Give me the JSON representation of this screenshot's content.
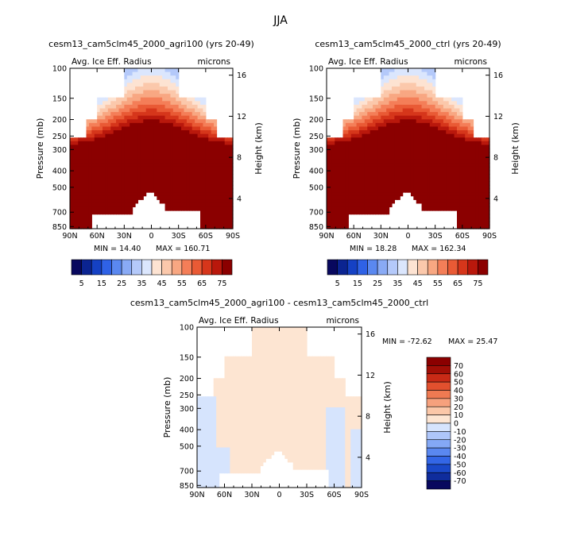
{
  "figure": {
    "title": "JJA"
  },
  "chart_data": [
    {
      "type": "heatmap",
      "title": "cesm13_cam5clm45_2000_agri100 (yrs 20-49)",
      "variable": "Avg. Ice Eff. Radius",
      "units": "microns",
      "ylabel": "Pressure (mb)",
      "y2label": "Height (km)",
      "x_ticks": [
        "90N",
        "60N",
        "30N",
        "0",
        "30S",
        "60S",
        "90S"
      ],
      "y_ticks": [
        "100",
        "150",
        "200",
        "250",
        "300",
        "400",
        "500",
        "700",
        "850"
      ],
      "y2_ticks": [
        "16",
        "12",
        "8",
        "4"
      ],
      "min_label": "MIN = 14.40",
      "max_label": "MAX = 160.71",
      "colorbar_labels": [
        "5",
        "15",
        "25",
        "35",
        "45",
        "55",
        "65",
        "75"
      ],
      "colorbar_min": 0,
      "colorbar_max": 80,
      "colorbar_step": 5
    },
    {
      "type": "heatmap",
      "title": "cesm13_cam5clm45_2000_ctrl (yrs 20-49)",
      "variable": "Avg. Ice Eff. Radius",
      "units": "microns",
      "ylabel": "Pressure (mb)",
      "y2label": "Height (km)",
      "x_ticks": [
        "90N",
        "60N",
        "30N",
        "0",
        "30S",
        "60S",
        "90S"
      ],
      "y_ticks": [
        "100",
        "150",
        "200",
        "250",
        "300",
        "400",
        "500",
        "700",
        "850"
      ],
      "y2_ticks": [
        "16",
        "12",
        "8",
        "4"
      ],
      "min_label": "MIN = 18.28",
      "max_label": "MAX = 162.34",
      "colorbar_labels": [
        "5",
        "15",
        "25",
        "35",
        "45",
        "55",
        "65",
        "75"
      ],
      "colorbar_min": 0,
      "colorbar_max": 80,
      "colorbar_step": 5
    },
    {
      "type": "heatmap",
      "title": "cesm13_cam5clm45_2000_agri100 - cesm13_cam5clm45_2000_ctrl",
      "variable": "Avg. Ice Eff. Radius",
      "units": "microns",
      "ylabel": "Pressure (mb)",
      "y2label": "Height (km)",
      "x_ticks": [
        "90N",
        "60N",
        "30N",
        "0",
        "30S",
        "60S",
        "90S"
      ],
      "y_ticks": [
        "100",
        "150",
        "200",
        "250",
        "300",
        "400",
        "500",
        "700",
        "850"
      ],
      "y2_ticks": [
        "16",
        "12",
        "8",
        "4"
      ],
      "min_label": "MIN = -72.62",
      "max_label": "MAX = 25.47",
      "colorbar_labels": [
        "70",
        "60",
        "50",
        "40",
        "30",
        "20",
        "10",
        "0",
        "-10",
        "-20",
        "-30",
        "-40",
        "-50",
        "-60",
        "-70"
      ],
      "colorbar_min": -80,
      "colorbar_max": 80,
      "colorbar_step": 10
    }
  ],
  "palette": {
    "seq": [
      "#08085e",
      "#0b2491",
      "#1541c4",
      "#2f62e6",
      "#5a88f0",
      "#89aaf5",
      "#b4c9fa",
      "#dbe6fd",
      "#fde3d2",
      "#fbc8ab",
      "#f8a782",
      "#f47e58",
      "#e95a35",
      "#d6361b",
      "#b9180c",
      "#8b0000"
    ],
    "div": [
      "#08085e",
      "#0f2c9c",
      "#1a48c8",
      "#3366e6",
      "#5a88f0",
      "#84a8f5",
      "#aec6fa",
      "#d6e4fd",
      "#fde5d2",
      "#fbc7a8",
      "#f6a17d",
      "#ef7a52",
      "#e2502e",
      "#c82a16",
      "#a10e06",
      "#8b0000"
    ]
  }
}
